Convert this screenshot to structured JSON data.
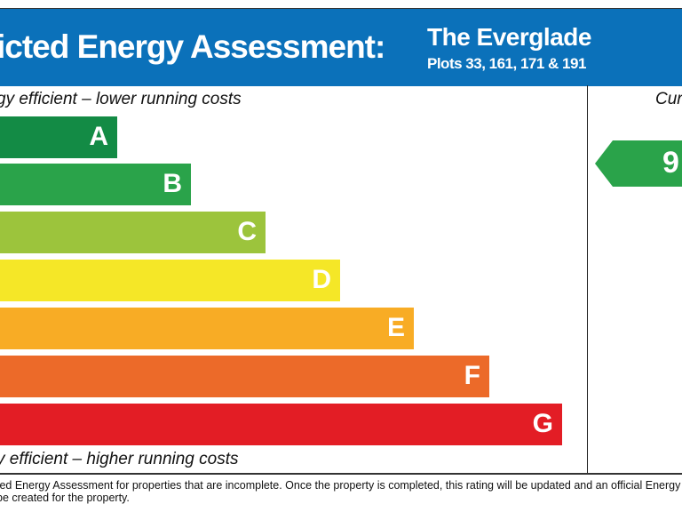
{
  "header": {
    "title": "icted Energy Assessment:",
    "property_name": "The Everglade",
    "plots": "Plots 33, 161, 171 & 191"
  },
  "scale": {
    "top_caption": "gy efficient – lower running costs",
    "bottom_caption": "y efficient – higher running costs",
    "bands": [
      {
        "letter": "A",
        "color": "#138b45"
      },
      {
        "letter": "B",
        "color": "#2aa34a"
      },
      {
        "letter": "C",
        "color": "#9cc43c"
      },
      {
        "letter": "D",
        "color": "#f5e727"
      },
      {
        "letter": "E",
        "color": "#f8ac25"
      },
      {
        "letter": "F",
        "color": "#ec6a29"
      },
      {
        "letter": "G",
        "color": "#e31d25"
      }
    ]
  },
  "current": {
    "header": "Cur",
    "rating": "9",
    "color": "#2aa34a"
  },
  "footer": {
    "line1": "ted Energy Assessment for properties that are incomplete. Once the property is completed, this rating will be updated and an official Energy",
    "line2": "be created for the property."
  }
}
